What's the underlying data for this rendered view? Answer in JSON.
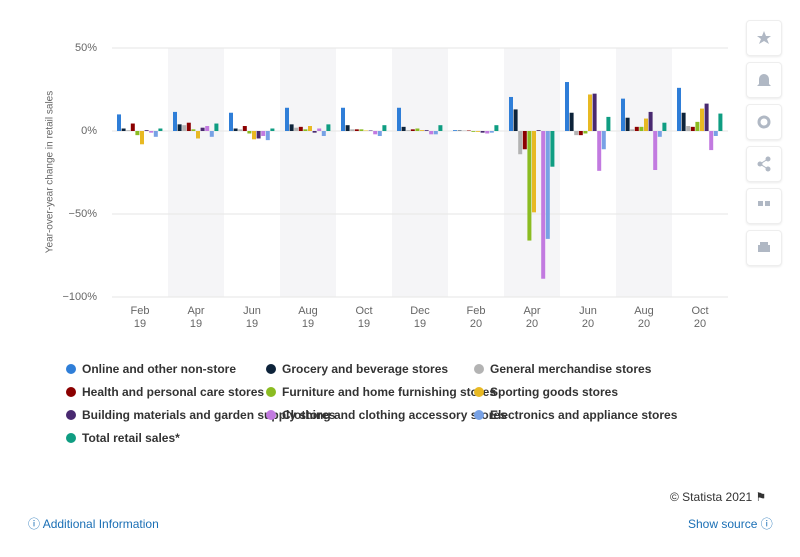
{
  "chart_data": {
    "type": "bar",
    "y_axis_label": "Year-over-year change in retail sales",
    "categories": [
      "Feb 19",
      "Apr 19",
      "Jun 19",
      "Aug 19",
      "Oct 19",
      "Dec 19",
      "Feb 20",
      "Apr 20",
      "Jun 20",
      "Aug 20",
      "Oct 20"
    ],
    "series": [
      {
        "name": "Online and other non-store",
        "color": "#2f7ed8",
        "values": [
          10,
          11.5,
          11,
          14,
          14,
          14,
          0.5,
          20.5,
          29.5,
          19.5,
          26
        ]
      },
      {
        "name": "Grocery and beverage stores",
        "color": "#0d233a",
        "values": [
          1.5,
          4,
          1.5,
          4,
          3.5,
          2.5,
          0.3,
          13,
          11,
          8,
          11
        ]
      },
      {
        "name": "General merchandise stores",
        "color": "#b3b3b3",
        "values": [
          0.5,
          3.5,
          1,
          2,
          1,
          0.5,
          0.3,
          -14,
          -2.5,
          1,
          3
        ]
      },
      {
        "name": "Health and personal care stores",
        "color": "#8b0000",
        "values": [
          4.5,
          5,
          3,
          2.5,
          1,
          1,
          0.3,
          -11,
          -2.5,
          2.5,
          2.5
        ]
      },
      {
        "name": "Furniture and home furnishing stores",
        "color": "#8bbc21",
        "values": [
          -2.5,
          1,
          -1.5,
          1,
          1,
          1.5,
          -0.5,
          -66,
          -1.5,
          2.5,
          5.5
        ]
      },
      {
        "name": "Sporting goods stores",
        "color": "#e8b923",
        "values": [
          -8,
          -4.5,
          -5,
          3,
          0.3,
          0.5,
          -0.5,
          -49,
          22,
          7.5,
          13.5
        ]
      },
      {
        "name": "Building materials and garden supply stores",
        "color": "#492970",
        "values": [
          0.5,
          2,
          -4.5,
          -1,
          0.3,
          0.5,
          -1,
          0.5,
          22.5,
          11.5,
          16.5
        ]
      },
      {
        "name": "Clothing and clothing accessory stores",
        "color": "#c27ae0",
        "values": [
          -1,
          3,
          -3,
          1.5,
          -2,
          -2,
          -1.5,
          -89,
          -24,
          -23.5,
          -11.5
        ]
      },
      {
        "name": "Electronics and appliance stores",
        "color": "#77a1e5",
        "values": [
          -3.5,
          -3.5,
          -5.5,
          -3,
          -3,
          -2,
          -1,
          -65,
          -11,
          -3.5,
          -3
        ]
      },
      {
        "name": "Total retail sales*",
        "color": "#0f9d82",
        "values": [
          1.5,
          4.5,
          1.5,
          4,
          3.5,
          3.5,
          3.5,
          -21.5,
          8.5,
          5,
          10.5
        ]
      }
    ],
    "ylim": [
      -100,
      50
    ],
    "yticks": [
      {
        "value": -100,
        "label": "−100%"
      },
      {
        "value": -50,
        "label": "−50%"
      },
      {
        "value": 0,
        "label": "0%"
      },
      {
        "value": 50,
        "label": "50%"
      }
    ],
    "grid": true
  },
  "footer": {
    "copyright": "© Statista 2021 ⚑",
    "additional_information": "Additional Information",
    "show_source": "Show source"
  }
}
